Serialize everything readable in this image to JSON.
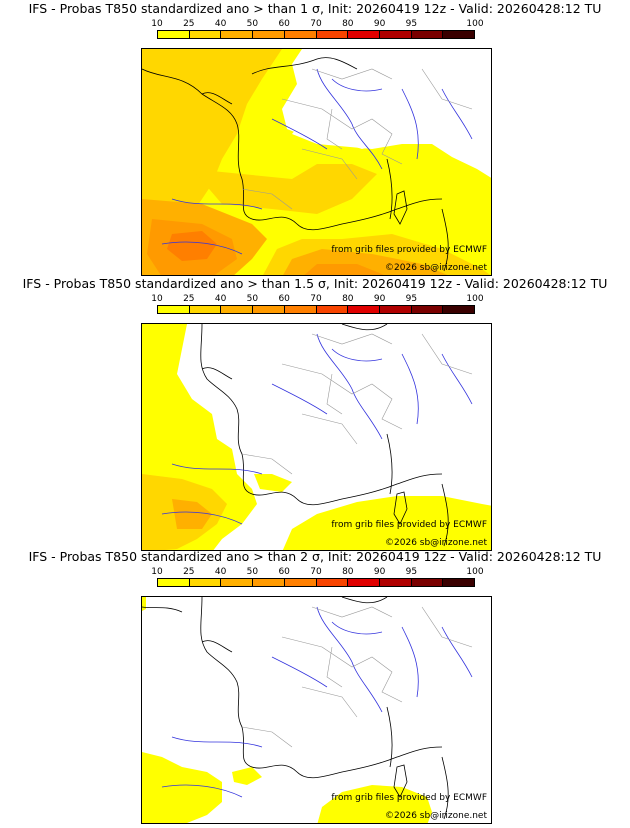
{
  "colors": {
    "legend": [
      "#FFFF00",
      "#FFD700",
      "#FFB000",
      "#FF9A00",
      "#FF7F00",
      "#F84400",
      "#E00000",
      "#B00000",
      "#7A0000",
      "#3A0000"
    ],
    "bg": "#ffffff",
    "coast": "#000000",
    "rivers": "#3333dd",
    "borders": "#999999"
  },
  "legend_ticks": [
    "10",
    "25",
    "40",
    "50",
    "60",
    "70",
    "80",
    "90",
    "95",
    "100"
  ],
  "panels": [
    {
      "title": "IFS - Probas T850  standardized ano > than 1 σ, Init: 20260419 12z - Valid: 20260428:12 TU",
      "credit_source": "from grib files provided by ECMWF",
      "credit_copyright": "©2026 sb@irizone.net"
    },
    {
      "title": "IFS - Probas T850  standardized ano > than 1.5 σ, Init: 20260419 12z - Valid: 20260428:12 TU",
      "credit_source": "from grib files provided by ECMWF",
      "credit_copyright": "©2026 sb@irizone.net"
    },
    {
      "title": "IFS - Probas T850  standardized ano > than 2 σ, Init: 20260419 12z - Valid: 20260428:12 TU",
      "credit_source": "from grib files provided by ECMWF",
      "credit_copyright": "©2026 sb@irizone.net"
    }
  ]
}
